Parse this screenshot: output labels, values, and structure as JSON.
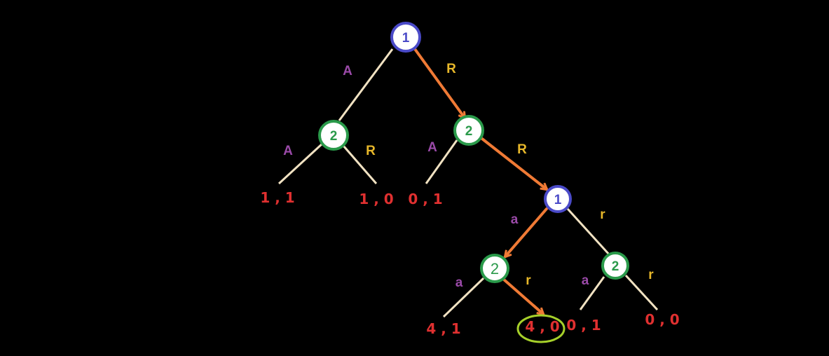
{
  "colors": {
    "background": "#000000",
    "branch": "#f1e2c2",
    "path": "#f07a35",
    "player1": "#4a4ac8",
    "player2": "#2a9a4a",
    "accept_label": "#9a4aa8",
    "reject_label": "#e8b82a",
    "payoff": "#e03030",
    "highlight": "#a6d02a"
  },
  "nodes": {
    "root": "1",
    "n2_left": "2",
    "n2_mid": "2",
    "n1_second": "1",
    "n2_a": "2",
    "n2_r": "2"
  },
  "edge_labels": {
    "root_A": "A",
    "root_R": "R",
    "left_A": "A",
    "left_R": "R",
    "mid_A": "A",
    "mid_R": "R",
    "second_a": "a",
    "second_r": "r",
    "n2a_a": "a",
    "n2a_r": "r",
    "n2r_a": "a",
    "n2r_r": "r"
  },
  "payoffs": {
    "p1": "1 , 1",
    "p2": "1 , 0",
    "p3": "0 , 1",
    "p4": "4 , 1",
    "p5": "4 , 0",
    "p6": "0 , 1",
    "p7": "0 , 0"
  }
}
